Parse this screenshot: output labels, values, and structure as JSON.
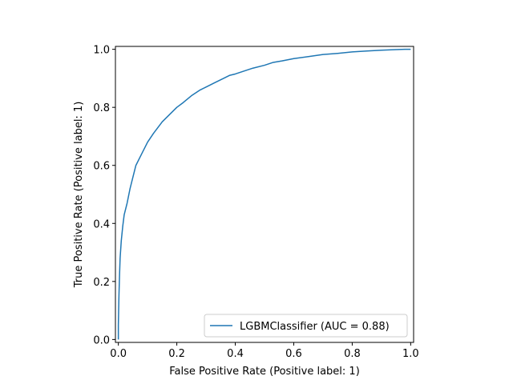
{
  "chart_data": {
    "type": "line",
    "title": "",
    "xlabel": "False Positive Rate (Positive label: 1)",
    "ylabel": "True Positive Rate (Positive label: 1)",
    "xlim": [
      -0.01,
      1.01
    ],
    "ylim": [
      -0.01,
      1.01
    ],
    "xticks": [
      0.0,
      0.2,
      0.4,
      0.6,
      0.8,
      1.0
    ],
    "xtick_labels": [
      "0.0",
      "0.2",
      "0.4",
      "0.6",
      "0.8",
      "1.0"
    ],
    "yticks": [
      0.0,
      0.2,
      0.4,
      0.6,
      0.8,
      1.0
    ],
    "ytick_labels": [
      "0.0",
      "0.2",
      "0.4",
      "0.6",
      "0.8",
      "1.0"
    ],
    "grid": false,
    "legend_position": "bottom-right",
    "series": [
      {
        "name": "LGBMClassifier (AUC = 0.88)",
        "color": "#1f77b4",
        "x": [
          0.0,
          0.0,
          0.002,
          0.004,
          0.006,
          0.01,
          0.015,
          0.02,
          0.03,
          0.04,
          0.05,
          0.06,
          0.08,
          0.1,
          0.12,
          0.15,
          0.18,
          0.2,
          0.22,
          0.25,
          0.28,
          0.3,
          0.33,
          0.36,
          0.38,
          0.4,
          0.43,
          0.46,
          0.5,
          0.53,
          0.56,
          0.6,
          0.65,
          0.7,
          0.75,
          0.8,
          0.85,
          0.9,
          0.95,
          0.98,
          1.0
        ],
        "y": [
          0.0,
          0.05,
          0.15,
          0.22,
          0.28,
          0.34,
          0.39,
          0.43,
          0.47,
          0.52,
          0.56,
          0.6,
          0.64,
          0.68,
          0.71,
          0.75,
          0.78,
          0.8,
          0.815,
          0.84,
          0.86,
          0.87,
          0.885,
          0.9,
          0.91,
          0.915,
          0.925,
          0.935,
          0.945,
          0.955,
          0.96,
          0.968,
          0.975,
          0.982,
          0.986,
          0.991,
          0.994,
          0.997,
          0.999,
          1.0,
          1.0
        ]
      }
    ]
  }
}
